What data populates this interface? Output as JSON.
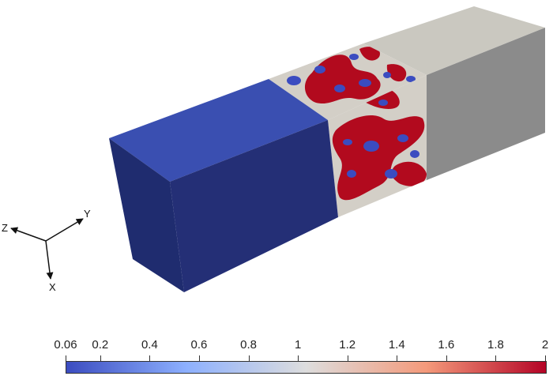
{
  "colorbar": {
    "ticks": [
      "0.06",
      "0.2",
      "0.4",
      "0.6",
      "0.8",
      "1",
      "1.2",
      "1.4",
      "1.6",
      "1.8",
      "2"
    ],
    "values": [
      0.06,
      0.2,
      0.4,
      0.6,
      0.8,
      1,
      1.2,
      1.4,
      1.6,
      1.8,
      2
    ],
    "range": [
      0.06,
      2
    ],
    "colors": [
      "#3b4cc0",
      "#8db0fe",
      "#dddddd",
      "#f49a7b",
      "#b40426"
    ]
  },
  "axes": {
    "x": "X",
    "y": "Y",
    "z": "Z"
  },
  "colors": {
    "low_face_front": "#22307a",
    "low_face_top": "#3a4fb1",
    "mid_face_top": "#c9c7c1",
    "mid_face_side": "#8a8a8a",
    "mix_red": "#b20a1e",
    "mix_blue": "#3b4cc0",
    "mix_gray": "#d0ccc4"
  }
}
